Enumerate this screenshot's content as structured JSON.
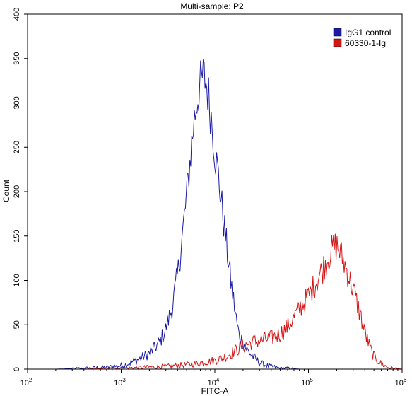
{
  "chart_data": {
    "type": "line",
    "title": "Multi-sample: P2",
    "xlabel": "FITC-A",
    "ylabel": "Count",
    "x_scale": "log",
    "xlim": [
      100,
      1000000
    ],
    "ylim": [
      0,
      400
    ],
    "grid": false,
    "legend_position": "top-right",
    "x_ticks": [
      {
        "base": "10",
        "exp": "2"
      },
      {
        "base": "10",
        "exp": "3"
      },
      {
        "base": "10",
        "exp": "4"
      },
      {
        "base": "10",
        "exp": "5"
      },
      {
        "base": "10",
        "exp": "6"
      }
    ],
    "y_ticks": [
      "0",
      "50",
      "100",
      "150",
      "200",
      "250",
      "300",
      "350",
      "400"
    ],
    "series": [
      {
        "name": "IgG1 control",
        "color": "#1a1aa6",
        "x": [
          100,
          200,
          400,
          700,
          1000,
          1300,
          1600,
          2000,
          2500,
          3000,
          3500,
          4000,
          4500,
          5000,
          5500,
          6000,
          6500,
          7000,
          7500,
          8000,
          8500,
          9000,
          9500,
          10000,
          11000,
          12000,
          13000,
          14000,
          15000,
          16000,
          17000,
          18000,
          20000,
          22000,
          25000,
          28000,
          32000,
          36000,
          40000,
          50000,
          60000,
          80000,
          100000
        ],
        "y": [
          0,
          0,
          1,
          2,
          4,
          8,
          12,
          18,
          28,
          45,
          70,
          105,
          150,
          195,
          240,
          280,
          305,
          320,
          330,
          325,
          310,
          290,
          270,
          245,
          215,
          180,
          150,
          120,
          95,
          75,
          55,
          40,
          30,
          22,
          15,
          10,
          6,
          4,
          3,
          1,
          1,
          0,
          0
        ]
      },
      {
        "name": "60330-1-Ig",
        "color": "#d41515",
        "x": [
          100,
          400,
          1000,
          3000,
          5000,
          8000,
          10000,
          13000,
          16000,
          20000,
          25000,
          30000,
          40000,
          50000,
          60000,
          70000,
          80000,
          100000,
          120000,
          140000,
          160000,
          180000,
          200000,
          220000,
          250000,
          300000,
          350000,
          400000,
          450000,
          500000,
          600000,
          700000,
          800000,
          1000000
        ],
        "y": [
          0,
          0,
          1,
          3,
          5,
          8,
          10,
          14,
          20,
          26,
          30,
          32,
          35,
          40,
          48,
          58,
          68,
          82,
          98,
          112,
          125,
          135,
          140,
          130,
          115,
          90,
          65,
          42,
          25,
          14,
          6,
          2,
          1,
          0
        ]
      }
    ]
  }
}
